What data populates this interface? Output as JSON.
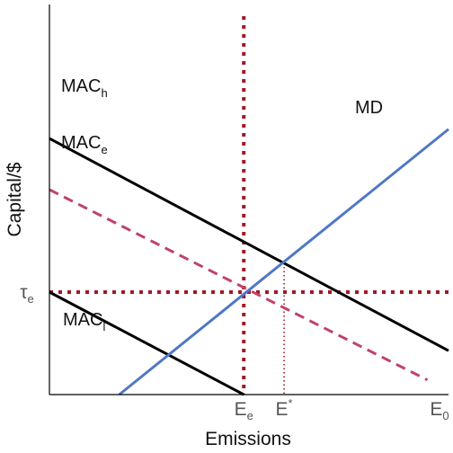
{
  "chart_data": {
    "type": "line",
    "xlabel": "Emissions",
    "ylabel": "Capital/$",
    "xlim": [
      0,
      100
    ],
    "ylim": [
      0,
      100
    ],
    "x_ticks": [
      {
        "base": "E",
        "sub": "e",
        "sup": "",
        "x": 48.7
      },
      {
        "base": "E",
        "sub": "",
        "sup": "*",
        "x": 58.8
      },
      {
        "base": "E",
        "sub": "0",
        "sup": "",
        "x": 100
      }
    ],
    "y_ticks": [
      {
        "base": "τ",
        "sub": "e",
        "sup": "",
        "y": 32.2
      }
    ],
    "series": [
      {
        "name": "MACh",
        "label_base": "MAC",
        "label_sub": "h",
        "color": "#000000",
        "style": "solid",
        "points": [
          [
            0,
            80.5
          ],
          [
            100,
            13.8
          ]
        ]
      },
      {
        "name": "MACe",
        "label_base": "MAC",
        "label_sub": "e",
        "color": "#c0436a",
        "style": "dashed",
        "points": [
          [
            0,
            64.4
          ],
          [
            94.7,
            4.6
          ]
        ]
      },
      {
        "name": "MACl",
        "label_base": "MAC",
        "label_sub": "l",
        "color": "#000000",
        "style": "solid",
        "points": [
          [
            0,
            32.2
          ],
          [
            48.7,
            0
          ]
        ]
      },
      {
        "name": "MD",
        "label_base": "MD",
        "label_sub": "",
        "color": "#4f78c4",
        "style": "solid",
        "points": [
          [
            17.5,
            0
          ],
          [
            100,
            83.4
          ]
        ]
      }
    ],
    "reference_lines": [
      {
        "name": "tau-e-level",
        "orientation": "horizontal",
        "value": 32.2,
        "color": "#a31826",
        "style": "dotted"
      },
      {
        "name": "Ee-level",
        "orientation": "vertical",
        "value": 48.7,
        "color": "#a31826",
        "style": "dotted"
      },
      {
        "name": "Estar-level",
        "orientation": "vertical",
        "value": 58.8,
        "color": "#a31826",
        "style": "fine-dotted",
        "from": 0,
        "to": 41.4
      }
    ],
    "grid": false,
    "legend": "none"
  }
}
